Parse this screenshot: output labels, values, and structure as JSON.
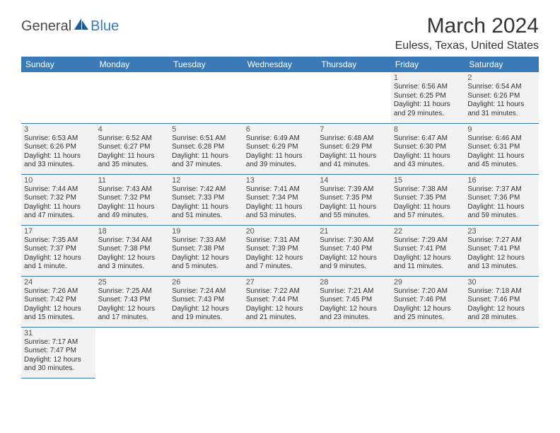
{
  "brand": {
    "part1": "General",
    "part2": "Blue",
    "icon_color": "#1f5c99"
  },
  "title": "March 2024",
  "location": "Euless, Texas, United States",
  "header_bg": "#3a7ab8",
  "header_fg": "#ffffff",
  "cell_bg": "#f2f2f2",
  "border_color": "#3a7ab8",
  "weekdays": [
    "Sunday",
    "Monday",
    "Tuesday",
    "Wednesday",
    "Thursday",
    "Friday",
    "Saturday"
  ],
  "first_weekday_index": 5,
  "days": [
    {
      "n": 1,
      "sr": "6:56 AM",
      "ss": "6:25 PM",
      "dl": "11 hours and 29 minutes."
    },
    {
      "n": 2,
      "sr": "6:54 AM",
      "ss": "6:26 PM",
      "dl": "11 hours and 31 minutes."
    },
    {
      "n": 3,
      "sr": "6:53 AM",
      "ss": "6:26 PM",
      "dl": "11 hours and 33 minutes."
    },
    {
      "n": 4,
      "sr": "6:52 AM",
      "ss": "6:27 PM",
      "dl": "11 hours and 35 minutes."
    },
    {
      "n": 5,
      "sr": "6:51 AM",
      "ss": "6:28 PM",
      "dl": "11 hours and 37 minutes."
    },
    {
      "n": 6,
      "sr": "6:49 AM",
      "ss": "6:29 PM",
      "dl": "11 hours and 39 minutes."
    },
    {
      "n": 7,
      "sr": "6:48 AM",
      "ss": "6:29 PM",
      "dl": "11 hours and 41 minutes."
    },
    {
      "n": 8,
      "sr": "6:47 AM",
      "ss": "6:30 PM",
      "dl": "11 hours and 43 minutes."
    },
    {
      "n": 9,
      "sr": "6:46 AM",
      "ss": "6:31 PM",
      "dl": "11 hours and 45 minutes."
    },
    {
      "n": 10,
      "sr": "7:44 AM",
      "ss": "7:32 PM",
      "dl": "11 hours and 47 minutes."
    },
    {
      "n": 11,
      "sr": "7:43 AM",
      "ss": "7:32 PM",
      "dl": "11 hours and 49 minutes."
    },
    {
      "n": 12,
      "sr": "7:42 AM",
      "ss": "7:33 PM",
      "dl": "11 hours and 51 minutes."
    },
    {
      "n": 13,
      "sr": "7:41 AM",
      "ss": "7:34 PM",
      "dl": "11 hours and 53 minutes."
    },
    {
      "n": 14,
      "sr": "7:39 AM",
      "ss": "7:35 PM",
      "dl": "11 hours and 55 minutes."
    },
    {
      "n": 15,
      "sr": "7:38 AM",
      "ss": "7:35 PM",
      "dl": "11 hours and 57 minutes."
    },
    {
      "n": 16,
      "sr": "7:37 AM",
      "ss": "7:36 PM",
      "dl": "11 hours and 59 minutes."
    },
    {
      "n": 17,
      "sr": "7:35 AM",
      "ss": "7:37 PM",
      "dl": "12 hours and 1 minute."
    },
    {
      "n": 18,
      "sr": "7:34 AM",
      "ss": "7:38 PM",
      "dl": "12 hours and 3 minutes."
    },
    {
      "n": 19,
      "sr": "7:33 AM",
      "ss": "7:38 PM",
      "dl": "12 hours and 5 minutes."
    },
    {
      "n": 20,
      "sr": "7:31 AM",
      "ss": "7:39 PM",
      "dl": "12 hours and 7 minutes."
    },
    {
      "n": 21,
      "sr": "7:30 AM",
      "ss": "7:40 PM",
      "dl": "12 hours and 9 minutes."
    },
    {
      "n": 22,
      "sr": "7:29 AM",
      "ss": "7:41 PM",
      "dl": "12 hours and 11 minutes."
    },
    {
      "n": 23,
      "sr": "7:27 AM",
      "ss": "7:41 PM",
      "dl": "12 hours and 13 minutes."
    },
    {
      "n": 24,
      "sr": "7:26 AM",
      "ss": "7:42 PM",
      "dl": "12 hours and 15 minutes."
    },
    {
      "n": 25,
      "sr": "7:25 AM",
      "ss": "7:43 PM",
      "dl": "12 hours and 17 minutes."
    },
    {
      "n": 26,
      "sr": "7:24 AM",
      "ss": "7:43 PM",
      "dl": "12 hours and 19 minutes."
    },
    {
      "n": 27,
      "sr": "7:22 AM",
      "ss": "7:44 PM",
      "dl": "12 hours and 21 minutes."
    },
    {
      "n": 28,
      "sr": "7:21 AM",
      "ss": "7:45 PM",
      "dl": "12 hours and 23 minutes."
    },
    {
      "n": 29,
      "sr": "7:20 AM",
      "ss": "7:46 PM",
      "dl": "12 hours and 25 minutes."
    },
    {
      "n": 30,
      "sr": "7:18 AM",
      "ss": "7:46 PM",
      "dl": "12 hours and 28 minutes."
    },
    {
      "n": 31,
      "sr": "7:17 AM",
      "ss": "7:47 PM",
      "dl": "12 hours and 30 minutes."
    }
  ],
  "labels": {
    "sunrise": "Sunrise:",
    "sunset": "Sunset:",
    "daylight": "Daylight:"
  }
}
